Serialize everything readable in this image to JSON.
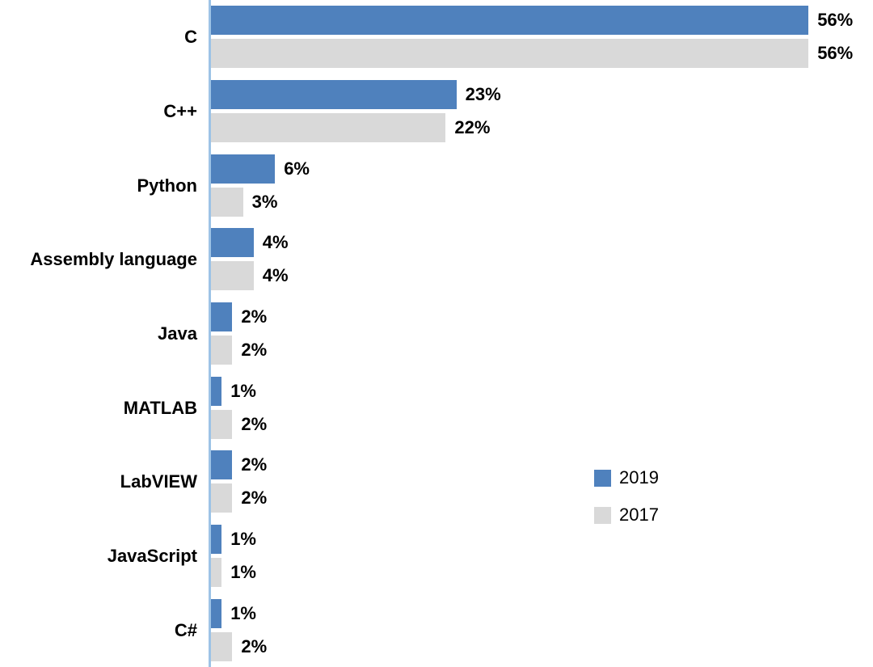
{
  "chart_data": {
    "type": "bar",
    "orientation": "horizontal",
    "title": "",
    "xlabel": "",
    "ylabel": "",
    "categories": [
      "C",
      "C++",
      "Python",
      "Assembly language",
      "Java",
      "MATLAB",
      "LabVIEW",
      "JavaScript",
      "C#"
    ],
    "series": [
      {
        "name": "2019",
        "color": "#4F81BD",
        "values": [
          56,
          23,
          6,
          4,
          2,
          1,
          2,
          1,
          1
        ]
      },
      {
        "name": "2017",
        "color": "#D9D9D9",
        "values": [
          56,
          22,
          3,
          4,
          2,
          2,
          2,
          1,
          2
        ]
      }
    ],
    "value_suffix": "%",
    "xlim": [
      0,
      56
    ],
    "grid": false,
    "legend_position": "right-middle",
    "axis_color": "#9DC3E6",
    "label_color": "#000000"
  }
}
